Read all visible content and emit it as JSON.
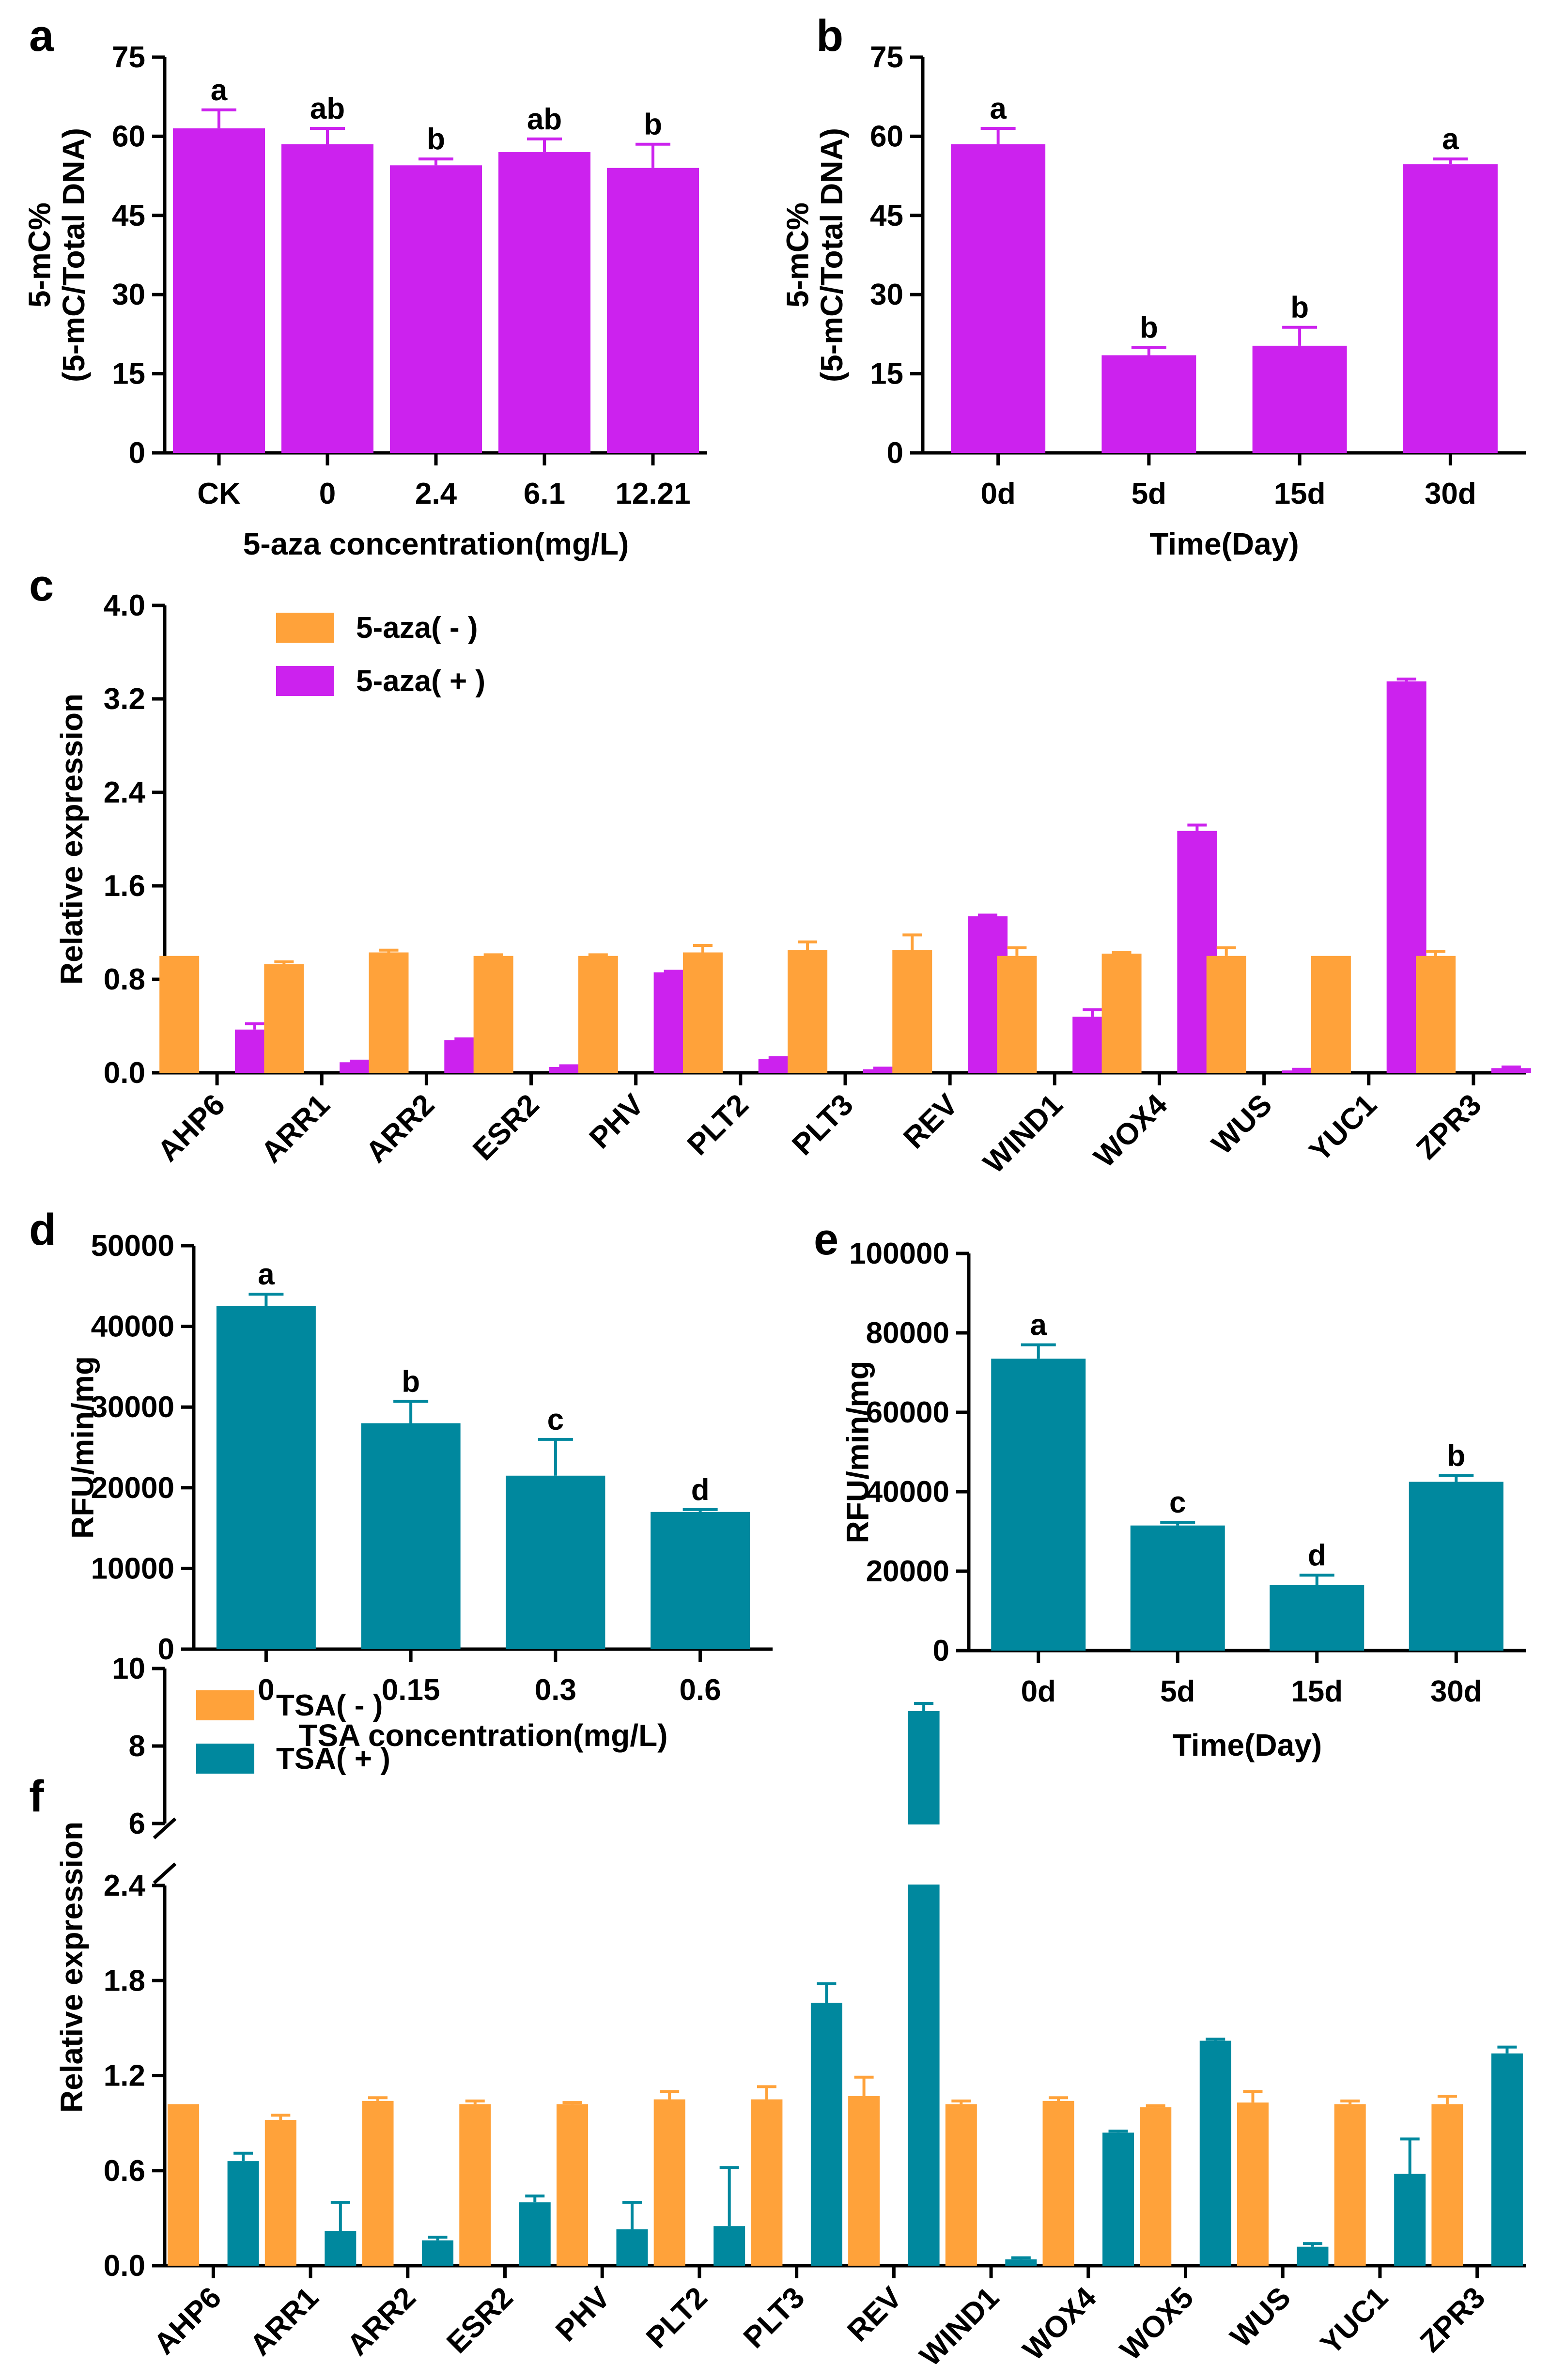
{
  "figure": {
    "colors": {
      "magenta": "#CC22EE",
      "orange": "#FFA23A",
      "teal": "#00889E",
      "axis": "#000000"
    }
  },
  "chart_data": [
    {
      "id": "a",
      "panel_label": "a",
      "type": "bar",
      "color": "#CC22EE",
      "categories": [
        "CK",
        "0",
        "2.4",
        "6.1",
        "12.21"
      ],
      "values": [
        61.5,
        58.5,
        54.5,
        57,
        54
      ],
      "errors": [
        3.5,
        3.0,
        1.2,
        2.5,
        4.5
      ],
      "letters": [
        "a",
        "ab",
        "b",
        "ab",
        "b"
      ],
      "ylabel": "5-mC%\n(5-mC/Total DNA)",
      "xlabel": "5-aza concentration(mg/L)",
      "ylim": [
        0,
        75
      ],
      "yticks": [
        "0",
        "15",
        "30",
        "45",
        "60",
        "75"
      ]
    },
    {
      "id": "b",
      "panel_label": "b",
      "type": "bar",
      "color": "#CC22EE",
      "categories": [
        "0d",
        "5d",
        "15d",
        "30d"
      ],
      "values": [
        58.5,
        18.5,
        20.3,
        54.7
      ],
      "errors": [
        3.0,
        1.5,
        3.5,
        1.0
      ],
      "letters": [
        "a",
        "b",
        "b",
        "a"
      ],
      "ylabel": "5-mC%\n(5-mC/Total DNA)",
      "xlabel": "Time(Day)",
      "ylim": [
        0,
        75
      ],
      "yticks": [
        "0",
        "15",
        "30",
        "45",
        "60",
        "75"
      ]
    },
    {
      "id": "c",
      "panel_label": "c",
      "type": "bar",
      "categories": [
        "AHP6",
        "ARR1",
        "ARR2",
        "ESR2",
        "PHV",
        "PLT2",
        "PLT3",
        "REV",
        "WIND1",
        "WOX4",
        "WUS",
        "YUC1",
        "ZPR3"
      ],
      "series": [
        {
          "name": "5-aza( - )",
          "color": "#FFA23A",
          "values": [
            1.0,
            0.93,
            1.03,
            1.0,
            1.0,
            1.03,
            1.05,
            1.05,
            1.0,
            1.02,
            1.0,
            1.0,
            1.0
          ],
          "errors": [
            0,
            0.02,
            0.02,
            0.01,
            0.01,
            0.06,
            0.07,
            0.13,
            0.07,
            0.01,
            0.07,
            0,
            0.04
          ]
        },
        {
          "name": "5-aza( + )",
          "color": "#CC22EE",
          "values": [
            0.37,
            0.09,
            0.28,
            0.05,
            0.86,
            0.12,
            0.03,
            1.34,
            0.48,
            2.07,
            0.02,
            3.35,
            0.04
          ],
          "errors": [
            0.05,
            0.01,
            0.01,
            0.01,
            0.01,
            0.01,
            0.01,
            0.01,
            0.06,
            0.05,
            0.01,
            0.02,
            0.01
          ]
        }
      ],
      "ylabel": "Relative expression",
      "ylim": [
        0,
        4.0
      ],
      "yticks": [
        "0.0",
        "0.8",
        "1.6",
        "2.4",
        "3.2",
        "4.0"
      ],
      "legend": [
        "5-aza( - )",
        "5-aza( + )"
      ]
    },
    {
      "id": "d",
      "panel_label": "d",
      "type": "bar",
      "color": "#00889E",
      "categories": [
        "0",
        "0.15",
        "0.3",
        "0.6"
      ],
      "values": [
        42500,
        28000,
        21500,
        17000
      ],
      "errors": [
        1500,
        2700,
        4500,
        300
      ],
      "letters": [
        "a",
        "b",
        "c",
        "d"
      ],
      "ylabel": "RFU/min/mg",
      "xlabel": "TSA concentration(mg/L)",
      "ylim": [
        0,
        50000
      ],
      "yticks": [
        "0",
        "10000",
        "20000",
        "30000",
        "40000",
        "50000"
      ]
    },
    {
      "id": "e",
      "panel_label": "e",
      "type": "bar",
      "color": "#00889E",
      "categories": [
        "0d",
        "5d",
        "15d",
        "30d"
      ],
      "values": [
        73500,
        31500,
        16500,
        42500
      ],
      "errors": [
        3500,
        800,
        2500,
        1600
      ],
      "letters": [
        "a",
        "c",
        "d",
        "b"
      ],
      "ylabel": "RFU/min/mg",
      "xlabel": "Time(Day)",
      "ylim": [
        0,
        100000
      ],
      "yticks": [
        "0",
        "20000",
        "40000",
        "60000",
        "80000",
        "100000"
      ]
    },
    {
      "id": "f",
      "panel_label": "f",
      "type": "bar",
      "categories": [
        "AHP6",
        "ARR1",
        "ARR2",
        "ESR2",
        "PHV",
        "PLT2",
        "PLT3",
        "REV",
        "WIND1",
        "WOX4",
        "WOX5",
        "WUS",
        "YUC1",
        "ZPR3"
      ],
      "series": [
        {
          "name": "TSA( - )",
          "color": "#FFA23A",
          "values": [
            1.02,
            0.92,
            1.04,
            1.02,
            1.02,
            1.05,
            1.05,
            1.07,
            1.02,
            1.04,
            1.0,
            1.03,
            1.02,
            1.02
          ],
          "errors": [
            0,
            0.03,
            0.02,
            0.02,
            0.01,
            0.05,
            0.08,
            0.12,
            0.02,
            0.02,
            0.01,
            0.07,
            0.02,
            0.05
          ]
        },
        {
          "name": "TSA( + )",
          "color": "#00889E",
          "values": [
            0.66,
            0.22,
            0.16,
            0.4,
            0.23,
            0.25,
            1.66,
            8.9,
            0.04,
            0.84,
            1.42,
            0.12,
            0.58,
            1.34
          ],
          "errors": [
            0.05,
            0.18,
            0.02,
            0.04,
            0.17,
            0.37,
            0.12,
            0.2,
            0.01,
            0.01,
            0.01,
            0.02,
            0.22,
            0.04
          ]
        }
      ],
      "ylabel": "Relative expression",
      "broken_axis": {
        "lower": [
          0,
          2.4
        ],
        "upper": [
          6,
          10
        ]
      },
      "yticks_lower": [
        "0.0",
        "0.6",
        "1.2",
        "1.8",
        "2.4"
      ],
      "yticks_upper": [
        "6",
        "8",
        "10"
      ],
      "legend": [
        "TSA( - )",
        "TSA( + )"
      ]
    }
  ]
}
